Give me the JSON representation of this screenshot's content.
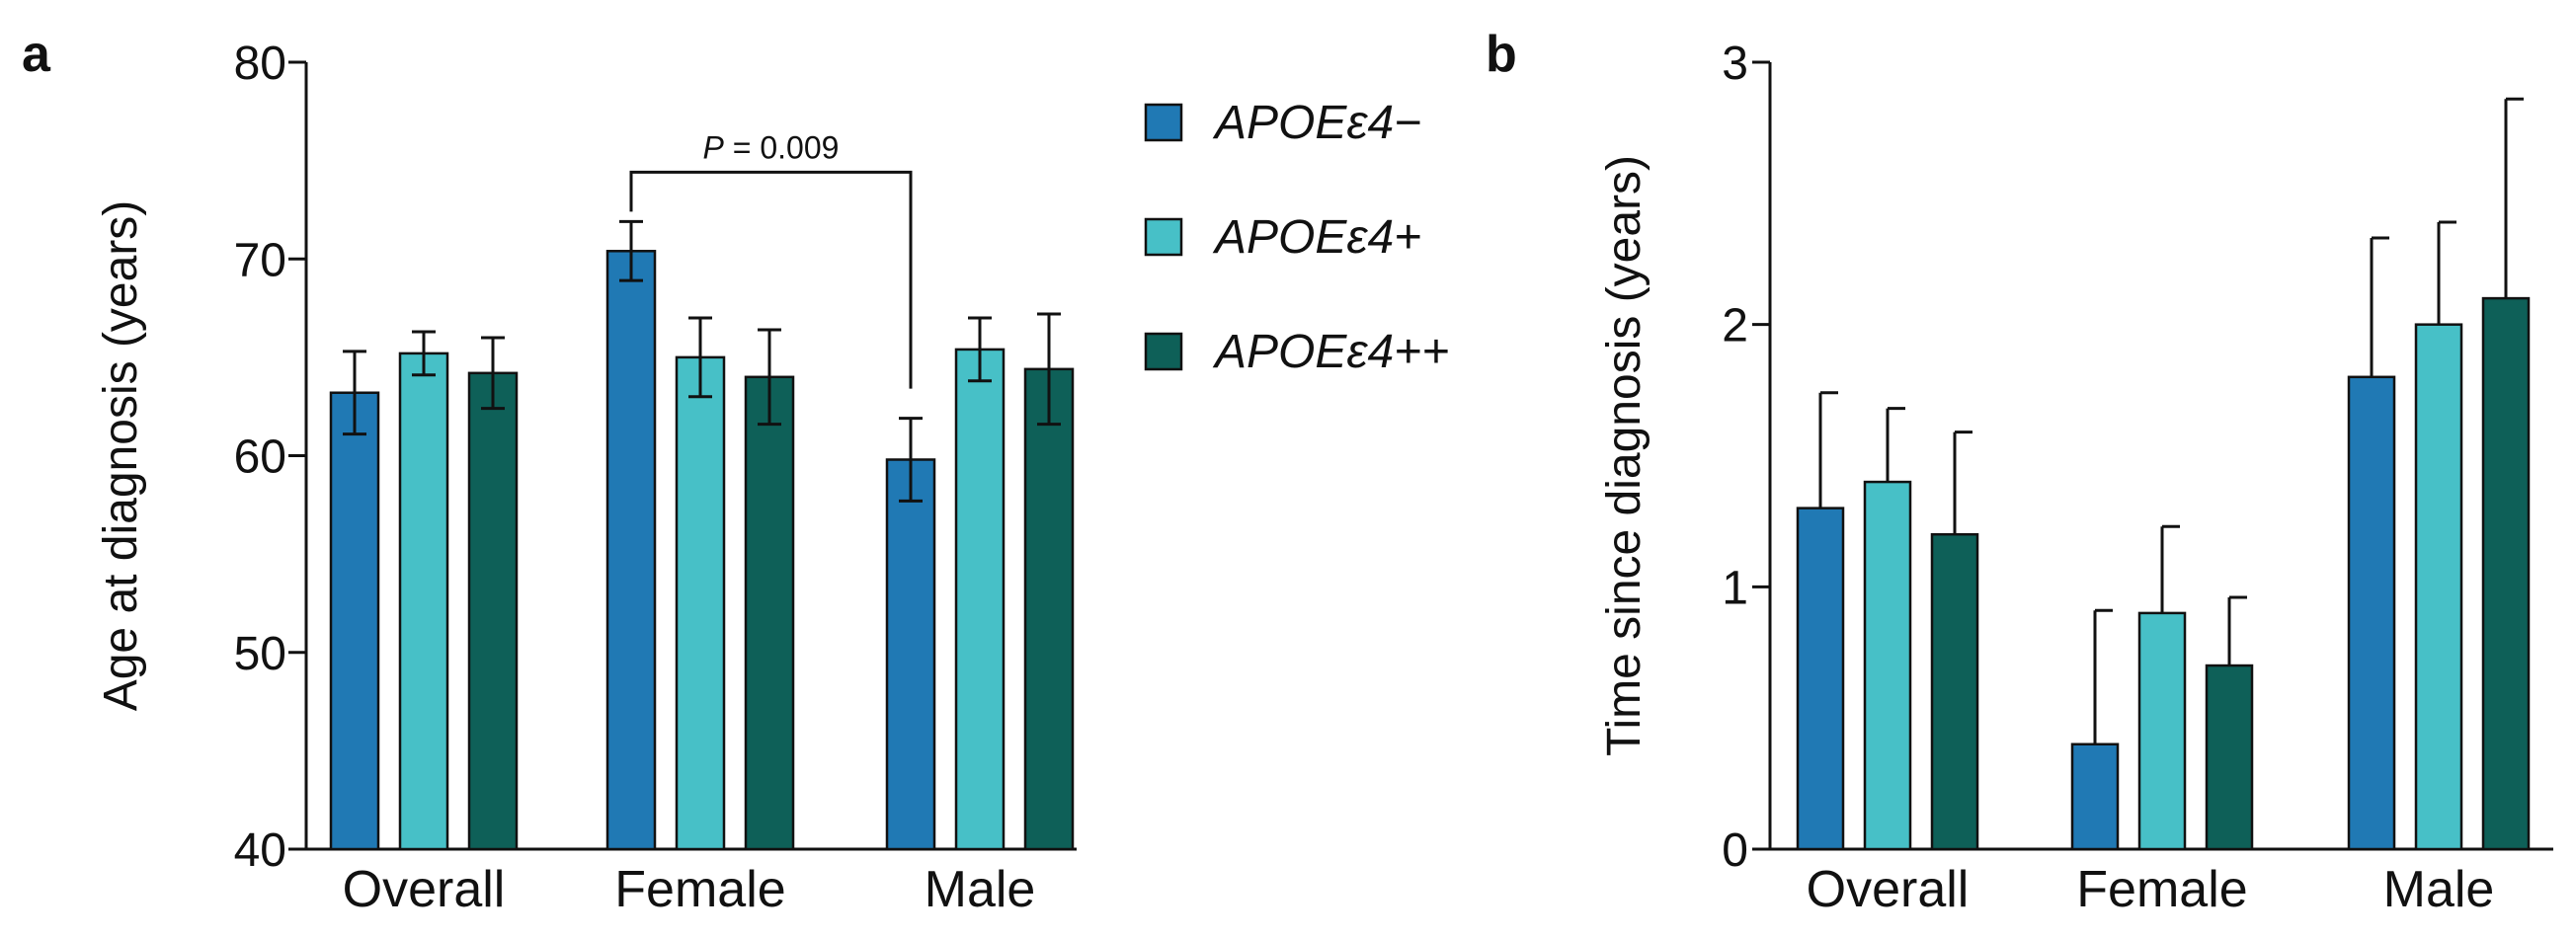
{
  "series_colors": [
    "#2079b4",
    "#47c0c7",
    "#0e6058"
  ],
  "legend": [
    {
      "label": "APOEε4−"
    },
    {
      "label": "APOEε4+"
    },
    {
      "label": "APOEε4++"
    }
  ],
  "annotation": {
    "p_label": "P",
    "p_value": "= 0.009"
  },
  "chart_data": [
    {
      "panel": "a",
      "type": "bar",
      "ylabel": "Age at diagnosis (years)",
      "ylim": [
        40,
        80
      ],
      "yticks": [
        40,
        50,
        60,
        70,
        80
      ],
      "categories": [
        "Overall",
        "Female",
        "Male"
      ],
      "series": [
        {
          "name": "APOEε4−",
          "values": [
            63.2,
            70.4,
            59.8
          ],
          "errors": [
            2.1,
            1.5,
            2.1
          ]
        },
        {
          "name": "APOEε4+",
          "values": [
            65.2,
            65.0,
            65.4
          ],
          "errors": [
            1.1,
            2.0,
            1.6
          ]
        },
        {
          "name": "APOEε4++",
          "values": [
            64.2,
            64.0,
            64.4
          ],
          "errors": [
            1.8,
            2.4,
            2.8
          ]
        }
      ],
      "significance": {
        "between": "Female APOEε4− vs Male APOEε4−",
        "p": 0.009
      }
    },
    {
      "panel": "b",
      "type": "bar",
      "ylabel": "Time since diagnosis (years)",
      "ylim": [
        0,
        3
      ],
      "yticks": [
        0,
        1,
        2,
        3
      ],
      "categories": [
        "Overall",
        "Female",
        "Male"
      ],
      "series": [
        {
          "name": "APOEε4−",
          "values": [
            1.3,
            0.4,
            1.8
          ],
          "errors": [
            0.44,
            0.51,
            0.53
          ]
        },
        {
          "name": "APOEε4+",
          "values": [
            1.4,
            0.9,
            2.0
          ],
          "errors": [
            0.28,
            0.33,
            0.39
          ]
        },
        {
          "name": "APOEε4++",
          "values": [
            1.2,
            0.7,
            2.1
          ],
          "errors": [
            0.39,
            0.26,
            0.76
          ]
        }
      ]
    }
  ]
}
